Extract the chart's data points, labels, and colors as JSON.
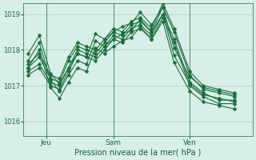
{
  "xlabel": "Pression niveau de la mer( hPa )",
  "ylabel": "",
  "bg_color": "#d8eee8",
  "grid_color": "#aaccbb",
  "line_color": "#1a6e3a",
  "tick_label_color": "#1a6e3a",
  "xlabel_color": "#1a5e3a",
  "ylim": [
    1015.6,
    1019.3
  ],
  "xtick_labels": [
    "Jeu",
    "Sam",
    "Ven"
  ],
  "xtick_positions": [
    0.08,
    0.38,
    0.72
  ],
  "series": [
    [
      1017.5,
      1017.8,
      1017.2,
      1017.1,
      1017.7,
      1018.1,
      1018.0,
      1017.9,
      1018.2,
      1018.5,
      1018.4,
      1018.7,
      1018.8,
      1018.5,
      1019.2,
      1018.5,
      1017.3,
      1016.9,
      1016.8,
      1016.7
    ],
    [
      1017.4,
      1017.6,
      1017.1,
      1017.0,
      1017.5,
      1018.0,
      1017.9,
      1017.8,
      1018.1,
      1018.4,
      1018.3,
      1018.6,
      1018.7,
      1018.4,
      1019.0,
      1018.3,
      1017.1,
      1016.8,
      1016.6,
      1016.6
    ],
    [
      1017.6,
      1017.9,
      1017.3,
      1017.2,
      1017.8,
      1018.2,
      1018.1,
      1018.0,
      1018.3,
      1018.6,
      1018.5,
      1018.8,
      1018.9,
      1018.6,
      1019.3,
      1018.6,
      1017.4,
      1017.0,
      1016.9,
      1016.8
    ],
    [
      1017.3,
      1017.5,
      1017.0,
      1016.9,
      1017.4,
      1017.9,
      1017.8,
      1017.7,
      1018.0,
      1018.3,
      1018.2,
      1018.5,
      1018.6,
      1018.3,
      1018.9,
      1018.2,
      1017.0,
      1016.7,
      1016.5,
      1016.5
    ],
    [
      1017.7,
      1018.2,
      1017.15,
      1016.85,
      1017.3,
      1017.7,
      1017.6,
      1018.25,
      1018.1,
      1018.3,
      1018.45,
      1018.55,
      1018.85,
      1018.5,
      1019.0,
      1017.85,
      1017.05,
      1016.75,
      1016.65,
      1016.55
    ],
    [
      1017.5,
      1018.0,
      1016.95,
      1016.65,
      1017.1,
      1017.5,
      1017.4,
      1018.05,
      1017.9,
      1018.1,
      1018.25,
      1018.35,
      1018.65,
      1018.3,
      1018.8,
      1017.65,
      1016.85,
      1016.55,
      1016.45,
      1016.35
    ],
    [
      1017.9,
      1018.4,
      1017.35,
      1017.05,
      1017.5,
      1017.9,
      1017.8,
      1018.45,
      1018.3,
      1018.5,
      1018.65,
      1018.75,
      1019.05,
      1018.7,
      1019.2,
      1018.05,
      1017.25,
      1016.95,
      1016.85,
      1016.75
    ]
  ],
  "x_positions": [
    0.0,
    0.05,
    0.1,
    0.14,
    0.18,
    0.22,
    0.26,
    0.3,
    0.34,
    0.38,
    0.42,
    0.46,
    0.5,
    0.55,
    0.6,
    0.65,
    0.72,
    0.78,
    0.85,
    0.92
  ]
}
